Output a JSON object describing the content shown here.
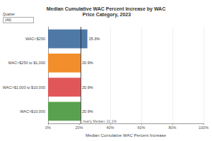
{
  "chart_data": {
    "type": "bar",
    "orientation": "horizontal",
    "title": "Median Cumulative WAC Percent Increase by WAC Price Category, 2023",
    "filter": {
      "label": "Quarter",
      "value": "(All)"
    },
    "categories": [
      "WAC<$250",
      "WAC>$250 to $1,000",
      "WAC>$1,000 to $10,000",
      "WAC>$10,000"
    ],
    "values": [
      25.3,
      20.9,
      20.9,
      20.9
    ],
    "value_labels": [
      "25.3%",
      "20.9%",
      "20.9%",
      "20.9%"
    ],
    "colors": [
      "#4e79a7",
      "#f28e2b",
      "#e15759",
      "#59a14f"
    ],
    "data_labels": true,
    "xlabel": "Median Cumulative WAC Percent Increase",
    "xlim": [
      0,
      100
    ],
    "xticks": [
      {
        "value": 0,
        "label": "0%"
      },
      {
        "value": 20,
        "label": "20%"
      },
      {
        "value": 40,
        "label": "40%"
      },
      {
        "value": 60,
        "label": "60%"
      },
      {
        "value": 80,
        "label": "80%"
      },
      {
        "value": 100,
        "label": "100%"
      }
    ],
    "reference_line": {
      "value": 21.1,
      "label": "Yearly Median: 21.1%"
    },
    "grid": true
  }
}
